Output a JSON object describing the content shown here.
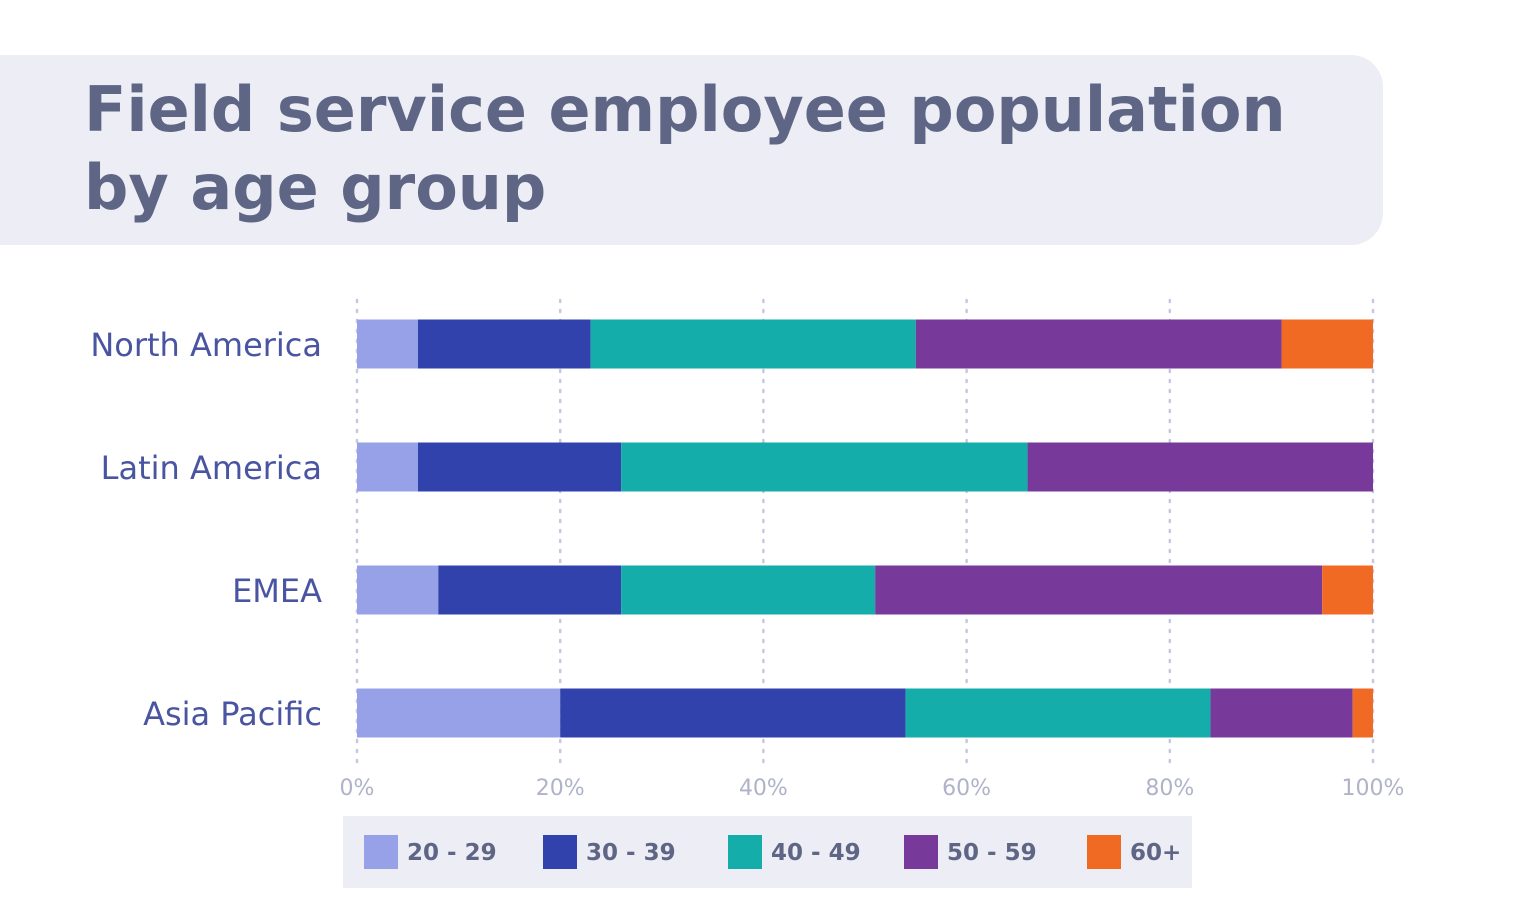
{
  "chart_data": {
    "type": "bar",
    "orientation": "horizontal",
    "stacked": true,
    "title": "Field service employee population by age group",
    "title_lines": [
      "Field service employee population",
      "by age group"
    ],
    "categories": [
      "North America",
      "Latin America",
      "EMEA",
      "Asia Pacific"
    ],
    "series": [
      {
        "name": "20 - 29",
        "color": "#97A1E8",
        "values": [
          6,
          6,
          8,
          20
        ]
      },
      {
        "name": "30 - 39",
        "color": "#3242AD",
        "values": [
          17,
          20,
          18,
          34
        ]
      },
      {
        "name": "40 - 49",
        "color": "#14ADAA",
        "values": [
          32,
          40,
          25,
          30
        ]
      },
      {
        "name": "50 - 59",
        "color": "#773A9B",
        "values": [
          36,
          34,
          44,
          14
        ]
      },
      {
        "name": "60+",
        "color": "#F06A23",
        "values": [
          9,
          0,
          5,
          2
        ]
      }
    ],
    "xlim": [
      0,
      100
    ],
    "x_ticks": [
      "0%",
      "20%",
      "40%",
      "60%",
      "80%",
      "100%"
    ],
    "grid": "vertical dotted",
    "legend_position": "bottom",
    "xlabel": "",
    "ylabel": ""
  }
}
